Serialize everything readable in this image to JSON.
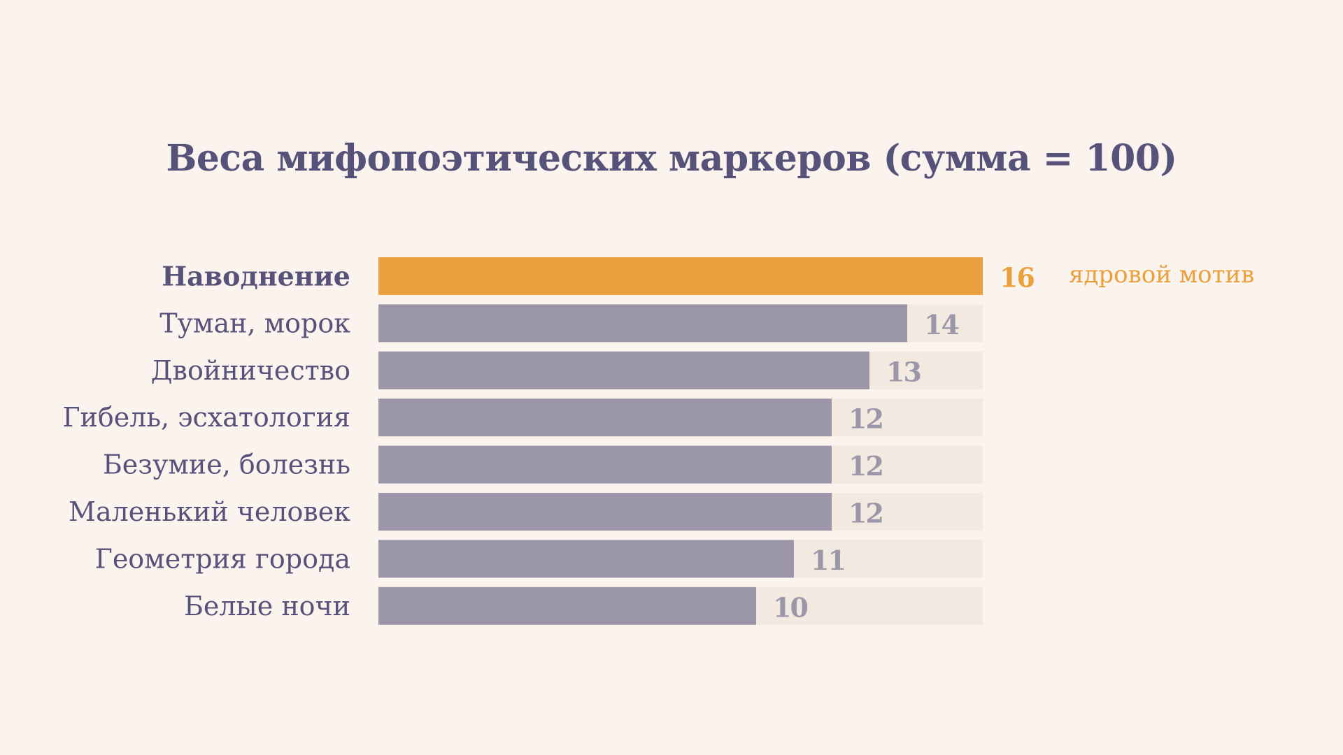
{
  "chart_data": {
    "type": "bar",
    "orientation": "horizontal",
    "title": "Веса мифопоэтических маркеров (сумма = 100)",
    "categories": [
      "Наводнение",
      "Туман, морок",
      "Двойничество",
      "Гибель, эсхатология",
      "Безумие, болезнь",
      "Маленький человек",
      "Геометрия города",
      "Белые ночи"
    ],
    "values": [
      16,
      14,
      13,
      12,
      12,
      12,
      11,
      10
    ],
    "xlim": [
      0,
      16
    ],
    "highlight_index": 0,
    "annotation": "ядровой мотив",
    "grid": false,
    "legend": "none"
  },
  "colors": {
    "background": "#fbf4ee",
    "track": "#f2e9e1",
    "bar": "#9c97a8",
    "highlight": "#e9a03d",
    "text": "#57527a",
    "value": "#9c97a8"
  }
}
